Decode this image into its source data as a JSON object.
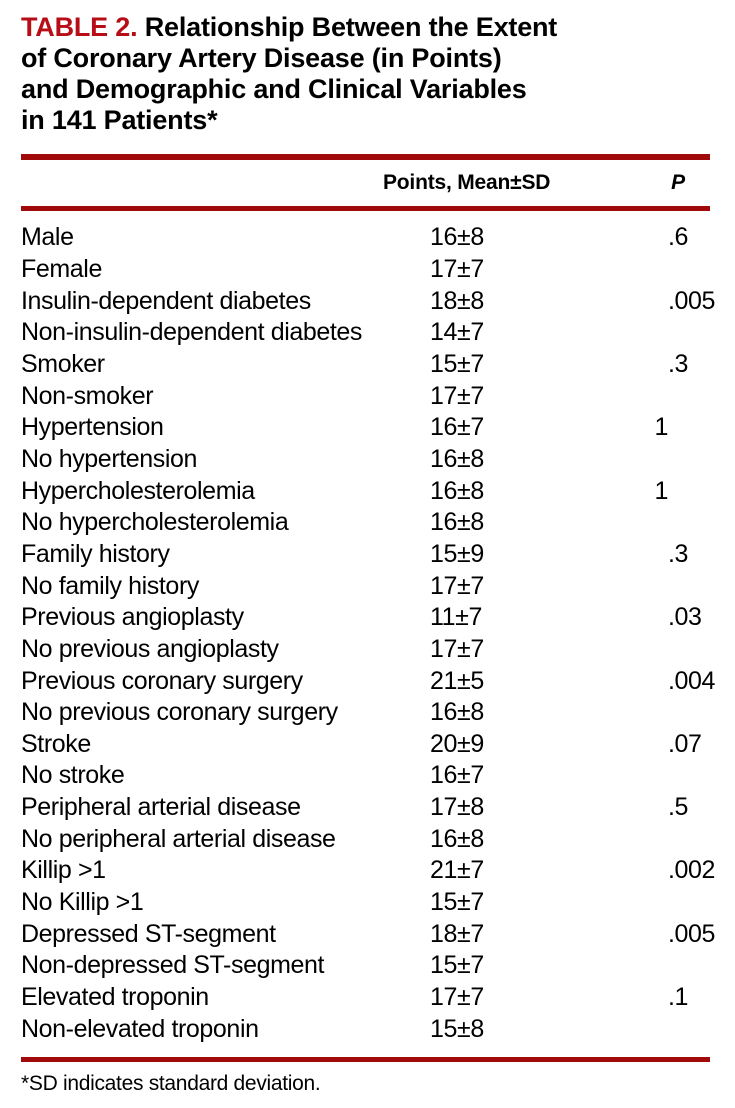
{
  "colors": {
    "title_red": "#b60d17",
    "rule_red": "#a00a0a",
    "text": "#000000"
  },
  "title": {
    "tag": "TABLE 2.",
    "lines": [
      "Relationship Between the Extent",
      "of Coronary Artery Disease (in Points)",
      "and Demographic and Clinical Variables",
      "in 141 Patients*"
    ]
  },
  "table": {
    "header": {
      "points": "Points, Mean±SD",
      "p": "P"
    },
    "rows": [
      {
        "variable": "Male",
        "points": "16±8",
        "p": ".6"
      },
      {
        "variable": "Female",
        "points": "17±7",
        "p": ""
      },
      {
        "variable": "Insulin-dependent diabetes",
        "points": "18±8",
        "p": ".005"
      },
      {
        "variable": "Non-insulin-dependent diabetes",
        "points": "14±7",
        "p": ""
      },
      {
        "variable": "Smoker",
        "points": "15±7",
        "p": ".3"
      },
      {
        "variable": "Non-smoker",
        "points": "17±7",
        "p": ""
      },
      {
        "variable": "Hypertension",
        "points": "16±7",
        "p": "1"
      },
      {
        "variable": "No hypertension",
        "points": "16±8",
        "p": ""
      },
      {
        "variable": "Hypercholesterolemia",
        "points": "16±8",
        "p": "1"
      },
      {
        "variable": "No hypercholesterolemia",
        "points": "16±8",
        "p": ""
      },
      {
        "variable": "Family history",
        "points": "15±9",
        "p": ".3"
      },
      {
        "variable": "No family history",
        "points": "17±7",
        "p": ""
      },
      {
        "variable": "Previous angioplasty",
        "points": "11±7",
        "p": ".03"
      },
      {
        "variable": "No previous angioplasty",
        "points": "17±7",
        "p": ""
      },
      {
        "variable": "Previous coronary surgery",
        "points": "21±5",
        "p": ".004"
      },
      {
        "variable": "No previous coronary surgery",
        "points": "16±8",
        "p": ""
      },
      {
        "variable": "Stroke",
        "points": "20±9",
        "p": ".07"
      },
      {
        "variable": "No stroke",
        "points": "16±7",
        "p": ""
      },
      {
        "variable": "Peripheral arterial disease",
        "points": "17±8",
        "p": ".5"
      },
      {
        "variable": "No peripheral arterial disease",
        "points": "16±8",
        "p": ""
      },
      {
        "variable": "Killip >1",
        "points": "21±7",
        "p": ".002"
      },
      {
        "variable": "No Killip >1",
        "points": "15±7",
        "p": ""
      },
      {
        "variable": "Depressed ST-segment",
        "points": "18±7",
        "p": ".005"
      },
      {
        "variable": "Non-depressed ST-segment",
        "points": "15±7",
        "p": ""
      },
      {
        "variable": "Elevated troponin",
        "points": "17±7",
        "p": ".1"
      },
      {
        "variable": "Non-elevated troponin",
        "points": "15±8",
        "p": ""
      }
    ]
  },
  "footnote": "*SD indicates standard deviation."
}
